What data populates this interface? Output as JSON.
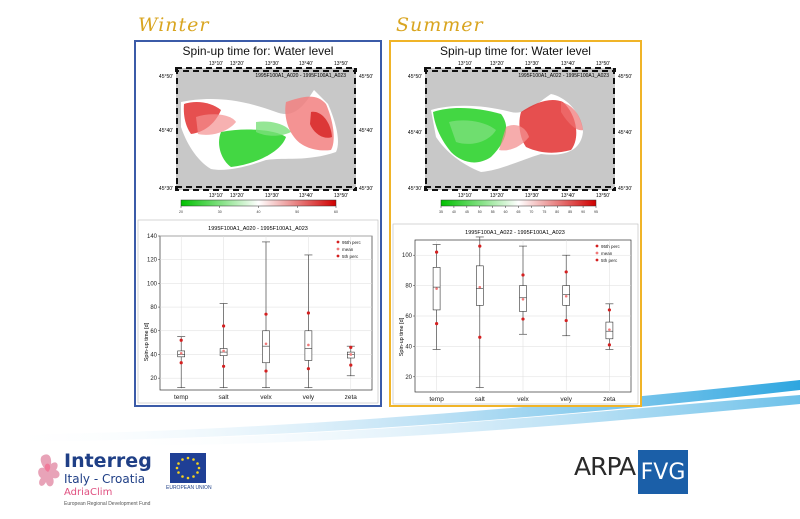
{
  "colors": {
    "winter_border": "#3b5ba8",
    "summer_border": "#f0b428",
    "season_label": "#d9a520",
    "box_stroke": "#333333",
    "marker": "#d42020",
    "mean_marker": "#f07a7a",
    "sea_gray": "#c8c8c8"
  },
  "winter": {
    "label": "Winter",
    "map_title": "Spin-up time for: Water level",
    "map_subtitle": "1995F100A1_A020 - 1995F100A1_A023",
    "map_ticks_top": [
      "13°10'",
      "13°20'",
      "13°30'",
      "13°40'",
      "13°50'"
    ],
    "map_ticks_left": [
      "45°50'",
      "45°40'",
      "45°30'"
    ],
    "map_ticks_right": [
      "45°50'",
      "45°40'",
      "45°30'"
    ],
    "colorbar_ticks": [
      "20",
      "30",
      "40",
      "50",
      "60"
    ]
  },
  "summer": {
    "label": "Summer",
    "map_title": "Spin-up time for: Water level",
    "map_subtitle": "1995F100A1_A022 - 1995F100A1_A023",
    "map_ticks_top": [
      "13°10'",
      "13°20'",
      "13°30'",
      "13°40'",
      "13°50'"
    ],
    "map_ticks_left": [
      "45°50'",
      "45°40'",
      "45°30'"
    ],
    "map_ticks_right": [
      "45°50'",
      "45°40'",
      "45°30'"
    ],
    "colorbar_ticks": [
      "35",
      "40",
      "45",
      "50",
      "55",
      "60",
      "65",
      "70",
      "75",
      "80",
      "85",
      "90",
      "95"
    ]
  },
  "chart_data": [
    {
      "type": "box",
      "panel": "winter",
      "title": "1995F100A1_A020 - 1995F100A1_A023",
      "xlabel": "",
      "ylabel": "Spin-up time [d]",
      "categories": [
        "temp",
        "salt",
        "velx",
        "vely",
        "zeta"
      ],
      "ylim": [
        10,
        140
      ],
      "yticks": [
        20,
        40,
        60,
        80,
        100,
        120,
        140
      ],
      "grid": true,
      "legend": [
        "95th perc",
        "mean",
        "5th perc"
      ],
      "legend_position": "top-right",
      "whisker_low": [
        12,
        12,
        12,
        12,
        22
      ],
      "q1": [
        38,
        39,
        33,
        35,
        37
      ],
      "median": [
        40,
        42,
        47,
        45,
        40
      ],
      "q3": [
        43,
        45,
        60,
        60,
        42
      ],
      "whisker_high": [
        55,
        83,
        135,
        124,
        47
      ],
      "p95": [
        52,
        64,
        74,
        75,
        46
      ],
      "mean": [
        41,
        43,
        49,
        48,
        40
      ],
      "p5": [
        33,
        30,
        26,
        28,
        31
      ]
    },
    {
      "type": "box",
      "panel": "summer",
      "title": "1995F100A1_A022 - 1995F100A1_A023",
      "xlabel": "",
      "ylabel": "Spin-up time [d]",
      "categories": [
        "temp",
        "salt",
        "velx",
        "vely",
        "zeta"
      ],
      "ylim": [
        10,
        110
      ],
      "yticks": [
        20,
        40,
        60,
        80,
        100
      ],
      "grid": true,
      "legend": [
        "95th perc",
        "mean",
        "5th perc"
      ],
      "legend_position": "top-right",
      "whisker_low": [
        38,
        13,
        48,
        47,
        38
      ],
      "q1": [
        64,
        67,
        63,
        67,
        45
      ],
      "median": [
        79,
        78,
        72,
        74,
        50
      ],
      "q3": [
        92,
        93,
        80,
        80,
        56
      ],
      "whisker_high": [
        107,
        112,
        106,
        100,
        68
      ],
      "p95": [
        102,
        106,
        87,
        89,
        64
      ],
      "mean": [
        78,
        79,
        71,
        73,
        51
      ],
      "p5": [
        55,
        46,
        58,
        57,
        41
      ]
    }
  ],
  "footer": {
    "interreg_title": "Interreg",
    "interreg_program": "Italy - Croatia",
    "interreg_project": "AdriaClim",
    "interreg_fund": "European Regional Development Fund",
    "eu_label": "EUROPEAN UNION",
    "arpa_text": "ARPA",
    "arpa_region": "FVG"
  }
}
